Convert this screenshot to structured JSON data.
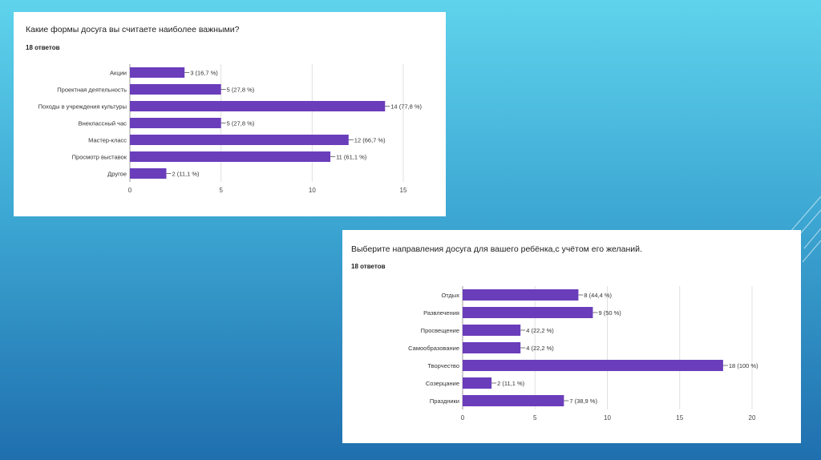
{
  "colors": {
    "bar": "#6a3dbb",
    "accent": "#673ab7"
  },
  "chart_data": [
    {
      "type": "bar",
      "orientation": "horizontal",
      "title": "Какие формы досуга вы считаете наиболее важными?",
      "subtitle": "18 ответов",
      "categories": [
        "Акции",
        "Проектная деятельность",
        "Походы в учреждения культуры",
        "Внеклассный час",
        "Мастер-класс",
        "Просмотр выставок",
        "Другое"
      ],
      "values": [
        3,
        5,
        14,
        5,
        12,
        11,
        2
      ],
      "labels": [
        "3 (16,7 %)",
        "5 (27,8 %)",
        "14 (77,8 %)",
        "5 (27,8 %)",
        "12 (66,7 %)",
        "11 (61,1 %)",
        "2 (11,1 %)"
      ],
      "xlim": [
        0,
        15
      ],
      "ticks": [
        0,
        5,
        10,
        15
      ],
      "tick_labels": [
        "0",
        "5",
        "10",
        "15"
      ]
    },
    {
      "type": "bar",
      "orientation": "horizontal",
      "title": "Выберите направления досуга для вашего ребёнка,с учётом его желаний.",
      "subtitle": "18 ответов",
      "categories": [
        "Отдых",
        "Развлечения",
        "Просвещение",
        "Самообразование",
        "Творчество",
        "Созерцание",
        "Праздники"
      ],
      "values": [
        8,
        9,
        4,
        4,
        18,
        2,
        7
      ],
      "labels": [
        "8 (44,4 %)",
        "9 (50 %)",
        "4 (22,2 %)",
        "4 (22,2 %)",
        "18 (100 %)",
        "2 (11,1 %)",
        "7 (38,9 %)"
      ],
      "xlim": [
        0,
        20
      ],
      "ticks": [
        0,
        5,
        10,
        15,
        20
      ],
      "tick_labels": [
        "0",
        "5",
        "10",
        "15",
        "20"
      ]
    }
  ]
}
